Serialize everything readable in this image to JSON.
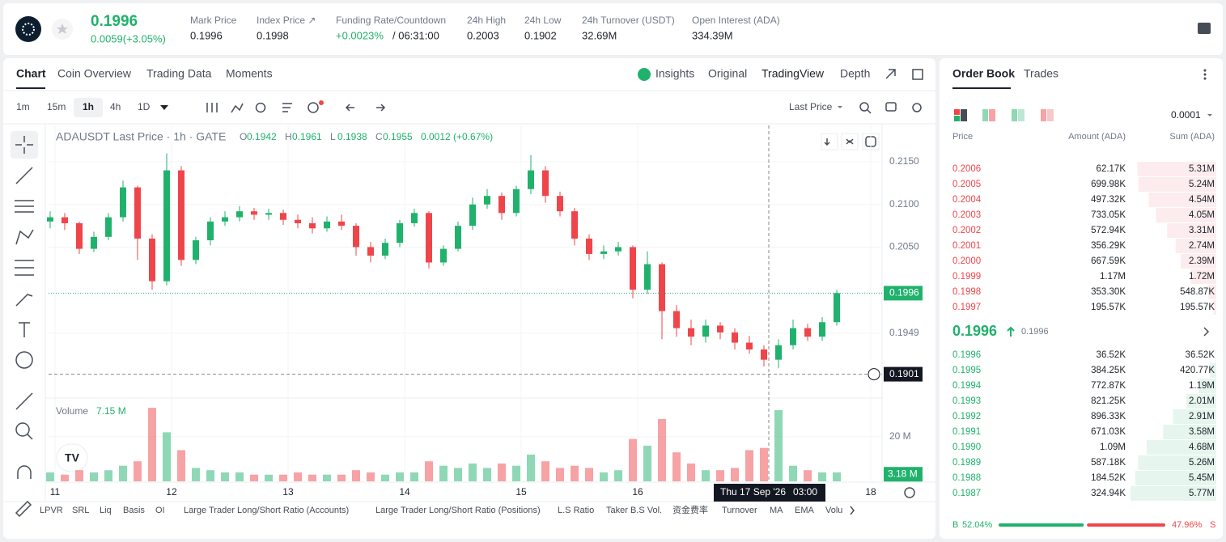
{
  "header": {
    "price": "0.1996",
    "change": "0.0059(+3.05%)",
    "stats": [
      {
        "label": "Mark Price",
        "value": "0.1996"
      },
      {
        "label": "Index Price ↗",
        "value": "0.1998"
      },
      {
        "label": "Funding Rate/Countdown",
        "value": "+0.0023%",
        "extra": "/ 06:31:00"
      },
      {
        "label": "24h High",
        "value": "0.2003"
      },
      {
        "label": "24h Low",
        "value": "0.1902"
      },
      {
        "label": "24h Turnover (USDT)",
        "value": "32.69M"
      },
      {
        "label": "Open Interest (ADA)",
        "value": "334.39M"
      }
    ]
  },
  "tabs": {
    "left": [
      "Chart",
      "Coin Overview",
      "Trading Data",
      "Moments"
    ],
    "right": [
      "Insights",
      "Original",
      "TradingView",
      "Depth"
    ]
  },
  "toolbar": {
    "intervals": [
      "1m",
      "15m",
      "1h",
      "4h",
      "1D"
    ],
    "price_type": "Last Price"
  },
  "chart_data": {
    "type": "candlestick",
    "title": "ADAUSDT Last Price · 1h · GATE",
    "legend": [
      {
        "key": "O",
        "value": "0.1942"
      },
      {
        "key": "H",
        "value": "0.1961"
      },
      {
        "key": "L",
        "value": "0.1938"
      },
      {
        "key": "C",
        "value": "0.1955"
      },
      {
        "key": "",
        "value": "0.0012 (+0.67%)"
      }
    ],
    "xlim": [
      -1.33,
      170.33
    ],
    "xticks": [
      {
        "value": 0,
        "label": "11"
      },
      {
        "value": 24,
        "label": "12"
      },
      {
        "value": 48,
        "label": "13"
      },
      {
        "value": 72,
        "label": "14"
      },
      {
        "value": 96,
        "label": "15"
      },
      {
        "value": 120,
        "label": "16"
      },
      {
        "value": 168,
        "label": "18"
      }
    ],
    "ylim": [
      0.18731,
      0.21927
    ],
    "yticks": [
      {
        "value": 0.215,
        "label": "0.2150"
      },
      {
        "value": 0.21,
        "label": "0.2100"
      },
      {
        "value": 0.205,
        "label": "0.2050"
      },
      {
        "value": 0.1949,
        "label": "0.1949"
      }
    ],
    "up_color": "#20b26c",
    "down_color": "#ef454a",
    "last_price": {
      "value": 0.1996,
      "label": "0.1996"
    },
    "crosshair": {
      "x": 147,
      "price": {
        "value": 0.1901,
        "label": "0.1901"
      },
      "date": "Thu 17 Sep '26",
      "time": "03:00"
    },
    "volume_label": "Volume",
    "volume_value": "7.15 M",
    "volume_ylim": [
      0,
      34.5
    ],
    "volume_yticks": [
      {
        "value": 20,
        "label": "20 M"
      }
    ],
    "volume_last": {
      "value": 3.18,
      "label": "3.18 M"
    },
    "candles": [
      {
        "x": -1,
        "o": 0.208,
        "h": 0.2092,
        "l": 0.2072,
        "c": 0.2085,
        "v": 4
      },
      {
        "x": 2,
        "o": 0.2085,
        "h": 0.209,
        "l": 0.207,
        "c": 0.2078,
        "v": 3
      },
      {
        "x": 5,
        "o": 0.2078,
        "h": 0.208,
        "l": 0.2042,
        "c": 0.2048,
        "v": 5
      },
      {
        "x": 8,
        "o": 0.2048,
        "h": 0.2068,
        "l": 0.2044,
        "c": 0.2062,
        "v": 4
      },
      {
        "x": 11,
        "o": 0.2062,
        "h": 0.209,
        "l": 0.2058,
        "c": 0.2085,
        "v": 5
      },
      {
        "x": 14,
        "o": 0.2085,
        "h": 0.2128,
        "l": 0.208,
        "c": 0.212,
        "v": 7
      },
      {
        "x": 17,
        "o": 0.212,
        "h": 0.2122,
        "l": 0.2035,
        "c": 0.206,
        "v": 9
      },
      {
        "x": 20,
        "o": 0.206,
        "h": 0.2065,
        "l": 0.2,
        "c": 0.201,
        "v": 33
      },
      {
        "x": 23,
        "o": 0.201,
        "h": 0.216,
        "l": 0.2005,
        "c": 0.214,
        "v": 22
      },
      {
        "x": 26,
        "o": 0.214,
        "h": 0.2145,
        "l": 0.2028,
        "c": 0.2035,
        "v": 14
      },
      {
        "x": 29,
        "o": 0.2035,
        "h": 0.2062,
        "l": 0.203,
        "c": 0.2058,
        "v": 6
      },
      {
        "x": 32,
        "o": 0.2058,
        "h": 0.2085,
        "l": 0.2052,
        "c": 0.208,
        "v": 5
      },
      {
        "x": 35,
        "o": 0.208,
        "h": 0.2092,
        "l": 0.2075,
        "c": 0.2085,
        "v": 4
      },
      {
        "x": 38,
        "o": 0.2085,
        "h": 0.2098,
        "l": 0.208,
        "c": 0.2092,
        "v": 4
      },
      {
        "x": 41,
        "o": 0.2092,
        "h": 0.2096,
        "l": 0.2082,
        "c": 0.2088,
        "v": 3
      },
      {
        "x": 44,
        "o": 0.2088,
        "h": 0.2095,
        "l": 0.2082,
        "c": 0.209,
        "v": 3
      },
      {
        "x": 47,
        "o": 0.209,
        "h": 0.2094,
        "l": 0.2076,
        "c": 0.2082,
        "v": 3
      },
      {
        "x": 50,
        "o": 0.2082,
        "h": 0.2088,
        "l": 0.2072,
        "c": 0.2078,
        "v": 4
      },
      {
        "x": 53,
        "o": 0.2078,
        "h": 0.2085,
        "l": 0.2066,
        "c": 0.2072,
        "v": 3
      },
      {
        "x": 56,
        "o": 0.2072,
        "h": 0.2086,
        "l": 0.2068,
        "c": 0.208,
        "v": 3
      },
      {
        "x": 59,
        "o": 0.208,
        "h": 0.2088,
        "l": 0.207,
        "c": 0.2075,
        "v": 3
      },
      {
        "x": 62,
        "o": 0.2075,
        "h": 0.2078,
        "l": 0.204,
        "c": 0.205,
        "v": 5
      },
      {
        "x": 65,
        "o": 0.205,
        "h": 0.2056,
        "l": 0.2032,
        "c": 0.204,
        "v": 4
      },
      {
        "x": 68,
        "o": 0.204,
        "h": 0.206,
        "l": 0.2036,
        "c": 0.2055,
        "v": 3
      },
      {
        "x": 71,
        "o": 0.2055,
        "h": 0.2082,
        "l": 0.205,
        "c": 0.2078,
        "v": 4
      },
      {
        "x": 74,
        "o": 0.2078,
        "h": 0.2095,
        "l": 0.2074,
        "c": 0.209,
        "v": 4
      },
      {
        "x": 77,
        "o": 0.209,
        "h": 0.2092,
        "l": 0.2025,
        "c": 0.2032,
        "v": 9
      },
      {
        "x": 80,
        "o": 0.2032,
        "h": 0.2052,
        "l": 0.2028,
        "c": 0.2048,
        "v": 7
      },
      {
        "x": 83,
        "o": 0.2048,
        "h": 0.208,
        "l": 0.2045,
        "c": 0.2075,
        "v": 6
      },
      {
        "x": 86,
        "o": 0.2075,
        "h": 0.2108,
        "l": 0.207,
        "c": 0.21,
        "v": 8
      },
      {
        "x": 89,
        "o": 0.21,
        "h": 0.2118,
        "l": 0.2095,
        "c": 0.211,
        "v": 6
      },
      {
        "x": 92,
        "o": 0.211,
        "h": 0.2114,
        "l": 0.2082,
        "c": 0.209,
        "v": 8
      },
      {
        "x": 95,
        "o": 0.209,
        "h": 0.2122,
        "l": 0.2086,
        "c": 0.2118,
        "v": 7
      },
      {
        "x": 98,
        "o": 0.2118,
        "h": 0.2158,
        "l": 0.2112,
        "c": 0.214,
        "v": 12
      },
      {
        "x": 101,
        "o": 0.214,
        "h": 0.2145,
        "l": 0.2102,
        "c": 0.211,
        "v": 9
      },
      {
        "x": 104,
        "o": 0.211,
        "h": 0.2115,
        "l": 0.2086,
        "c": 0.2092,
        "v": 6
      },
      {
        "x": 107,
        "o": 0.2092,
        "h": 0.2096,
        "l": 0.2052,
        "c": 0.206,
        "v": 7
      },
      {
        "x": 110,
        "o": 0.206,
        "h": 0.2065,
        "l": 0.2035,
        "c": 0.2042,
        "v": 6
      },
      {
        "x": 113,
        "o": 0.2042,
        "h": 0.2052,
        "l": 0.2036,
        "c": 0.2045,
        "v": 4
      },
      {
        "x": 116,
        "o": 0.2045,
        "h": 0.2056,
        "l": 0.204,
        "c": 0.205,
        "v": 5
      },
      {
        "x": 119,
        "o": 0.205,
        "h": 0.2052,
        "l": 0.199,
        "c": 0.2,
        "v": 19
      },
      {
        "x": 122,
        "o": 0.2,
        "h": 0.2045,
        "l": 0.1995,
        "c": 0.203,
        "v": 16
      },
      {
        "x": 125,
        "o": 0.203,
        "h": 0.2032,
        "l": 0.1942,
        "c": 0.1975,
        "v": 28
      },
      {
        "x": 128,
        "o": 0.1975,
        "h": 0.1982,
        "l": 0.1945,
        "c": 0.1955,
        "v": 13
      },
      {
        "x": 131,
        "o": 0.1955,
        "h": 0.1965,
        "l": 0.1935,
        "c": 0.1945,
        "v": 8
      },
      {
        "x": 134,
        "o": 0.1945,
        "h": 0.1965,
        "l": 0.1938,
        "c": 0.1958,
        "v": 5
      },
      {
        "x": 137,
        "o": 0.1958,
        "h": 0.1962,
        "l": 0.1942,
        "c": 0.195,
        "v": 5
      },
      {
        "x": 140,
        "o": 0.195,
        "h": 0.1955,
        "l": 0.193,
        "c": 0.1938,
        "v": 6
      },
      {
        "x": 143,
        "o": 0.1938,
        "h": 0.1946,
        "l": 0.1925,
        "c": 0.193,
        "v": 14
      },
      {
        "x": 146,
        "o": 0.193,
        "h": 0.1935,
        "l": 0.191,
        "c": 0.1918,
        "v": 15
      },
      {
        "x": 149,
        "o": 0.1918,
        "h": 0.1942,
        "l": 0.1908,
        "c": 0.1935,
        "v": 32
      },
      {
        "x": 152,
        "o": 0.1935,
        "h": 0.1965,
        "l": 0.193,
        "c": 0.1955,
        "v": 7
      },
      {
        "x": 155,
        "o": 0.1955,
        "h": 0.196,
        "l": 0.194,
        "c": 0.1945,
        "v": 5
      },
      {
        "x": 158,
        "o": 0.1945,
        "h": 0.1968,
        "l": 0.194,
        "c": 0.1962,
        "v": 4
      },
      {
        "x": 161,
        "o": 0.1962,
        "h": 0.2,
        "l": 0.1958,
        "c": 0.1996,
        "v": 4
      }
    ]
  },
  "indicators": [
    "LPVR",
    "SRL",
    "Liq",
    "Basis",
    "OI",
    "Large Trader Long/Short Ratio (Accounts)",
    "Large Trader Long/Short Ratio (Positions)",
    "L.S Ratio",
    "Taker B.S Vol.",
    "资金费率",
    "Turnover",
    "MA",
    "EMA",
    "Volu"
  ],
  "order_book": {
    "tabs": [
      "Order Book",
      "Trades"
    ],
    "precision": "0.0001",
    "columns": [
      "Price",
      "Amount (ADA)",
      "Sum (ADA)"
    ],
    "asks": [
      {
        "price": "0.2006",
        "amount": "62.17K",
        "sum": {
          "value": 5.31,
          "label": "5.31M"
        }
      },
      {
        "price": "0.2005",
        "amount": "699.98K",
        "sum": {
          "value": 5.24,
          "label": "5.24M"
        }
      },
      {
        "price": "0.2004",
        "amount": "497.32K",
        "sum": {
          "value": 4.54,
          "label": "4.54M"
        }
      },
      {
        "price": "0.2003",
        "amount": "733.05K",
        "sum": {
          "value": 4.05,
          "label": "4.05M"
        }
      },
      {
        "price": "0.2002",
        "amount": "572.94K",
        "sum": {
          "value": 3.31,
          "label": "3.31M"
        }
      },
      {
        "price": "0.2001",
        "amount": "356.29K",
        "sum": {
          "value": 2.74,
          "label": "2.74M"
        }
      },
      {
        "price": "0.2000",
        "amount": "667.59K",
        "sum": {
          "value": 2.39,
          "label": "2.39M"
        }
      },
      {
        "price": "0.1999",
        "amount": "1.17M",
        "sum": {
          "value": 1.72,
          "label": "1.72M"
        }
      },
      {
        "price": "0.1998",
        "amount": "353.30K",
        "sum": {
          "value": 0.54887,
          "label": "548.87K"
        }
      },
      {
        "price": "0.1997",
        "amount": "195.57K",
        "sum": {
          "value": 0.19557,
          "label": "195.57K"
        }
      }
    ],
    "last": "0.1996",
    "mark": "0.1996",
    "bids": [
      {
        "price": "0.1996",
        "amount": "36.52K",
        "sum": {
          "value": 0.03652,
          "label": "36.52K"
        }
      },
      {
        "price": "0.1995",
        "amount": "384.25K",
        "sum": {
          "value": 0.42077,
          "label": "420.77K"
        }
      },
      {
        "price": "0.1994",
        "amount": "772.87K",
        "sum": {
          "value": 1.19,
          "label": "1.19M"
        }
      },
      {
        "price": "0.1993",
        "amount": "821.25K",
        "sum": {
          "value": 2.01,
          "label": "2.01M"
        }
      },
      {
        "price": "0.1992",
        "amount": "896.33K",
        "sum": {
          "value": 2.91,
          "label": "2.91M"
        }
      },
      {
        "price": "0.1991",
        "amount": "671.03K",
        "sum": {
          "value": 3.58,
          "label": "3.58M"
        }
      },
      {
        "price": "0.1990",
        "amount": "1.09M",
        "sum": {
          "value": 4.68,
          "label": "4.68M"
        }
      },
      {
        "price": "0.1989",
        "amount": "587.18K",
        "sum": {
          "value": 5.26,
          "label": "5.26M"
        }
      },
      {
        "price": "0.1988",
        "amount": "184.52K",
        "sum": {
          "value": 5.45,
          "label": "5.45M"
        }
      },
      {
        "price": "0.1987",
        "amount": "324.94K",
        "sum": {
          "value": 5.77,
          "label": "5.77M"
        }
      }
    ],
    "buy_letter": "B",
    "sell_letter": "S",
    "buy": {
      "value": 52.04,
      "label": "52.04%"
    },
    "sell": {
      "value": 47.96,
      "label": "47.96%"
    }
  }
}
